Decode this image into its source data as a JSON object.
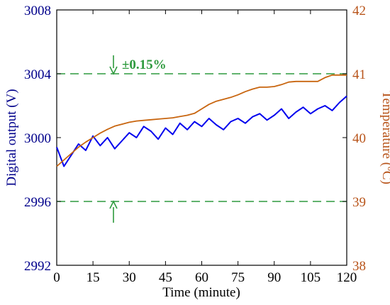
{
  "chart_data": {
    "type": "line",
    "xlabel": "Time (minute)",
    "ylabel_left": "Digital output (V)",
    "ylabel_right": "Temperature (ºC)",
    "x_ticks": [
      "0",
      "15",
      "30",
      "45",
      "60",
      "75",
      "90",
      "105",
      "120"
    ],
    "y_left_ticks": [
      "2992",
      "2996",
      "3000",
      "3004",
      "3008"
    ],
    "y_right_ticks": [
      "38",
      "39",
      "40",
      "41",
      "42"
    ],
    "xlim": [
      0,
      120
    ],
    "ylim_left": [
      2992,
      3008
    ],
    "ylim_right": [
      38,
      42
    ],
    "grid": false,
    "reference_lines": [
      {
        "axis": "left",
        "value": 3004,
        "style": "dashed",
        "color": "#2e9a3e"
      },
      {
        "axis": "left",
        "value": 2996,
        "style": "dashed",
        "color": "#2e9a3e"
      }
    ],
    "annotation": {
      "text": "±0.15%",
      "color": "#2e9a3e"
    },
    "series": [
      {
        "axis": "left",
        "color": "#0000ee",
        "x": [
          0,
          3,
          6,
          9,
          12,
          15,
          18,
          21,
          24,
          27,
          30,
          33,
          36,
          39,
          42,
          45,
          48,
          51,
          54,
          57,
          60,
          63,
          66,
          69,
          72,
          75,
          78,
          81,
          84,
          87,
          90,
          93,
          96,
          99,
          102,
          105,
          108,
          111,
          114,
          117,
          120
        ],
        "values": [
          2999.4,
          2998.2,
          2998.9,
          2999.6,
          2999.2,
          3000.1,
          2999.5,
          3000.0,
          2999.3,
          2999.8,
          3000.3,
          3000.0,
          3000.7,
          3000.4,
          2999.9,
          3000.6,
          3000.2,
          3000.9,
          3000.5,
          3001.0,
          3000.7,
          3001.2,
          3000.8,
          3000.5,
          3001.0,
          3001.2,
          3000.9,
          3001.3,
          3001.5,
          3001.1,
          3001.4,
          3001.8,
          3001.2,
          3001.6,
          3001.9,
          3001.5,
          3001.8,
          3002.0,
          3001.7,
          3002.2,
          3002.6
        ]
      },
      {
        "axis": "right",
        "color": "#c8650f",
        "x": [
          0,
          3,
          6,
          9,
          12,
          15,
          18,
          21,
          24,
          27,
          30,
          33,
          36,
          39,
          42,
          45,
          48,
          51,
          54,
          57,
          60,
          63,
          66,
          69,
          72,
          75,
          78,
          81,
          84,
          87,
          90,
          93,
          96,
          99,
          102,
          105,
          108,
          111,
          114,
          117,
          120
        ],
        "values": [
          39.55,
          39.65,
          39.75,
          39.85,
          39.93,
          40.0,
          40.07,
          40.13,
          40.18,
          40.21,
          40.24,
          40.26,
          40.27,
          40.28,
          40.29,
          40.3,
          40.31,
          40.33,
          40.35,
          40.38,
          40.45,
          40.52,
          40.57,
          40.6,
          40.63,
          40.67,
          40.72,
          40.76,
          40.79,
          40.79,
          40.8,
          40.83,
          40.87,
          40.88,
          40.88,
          40.88,
          40.88,
          40.94,
          40.98,
          40.98,
          40.98
        ]
      }
    ]
  }
}
